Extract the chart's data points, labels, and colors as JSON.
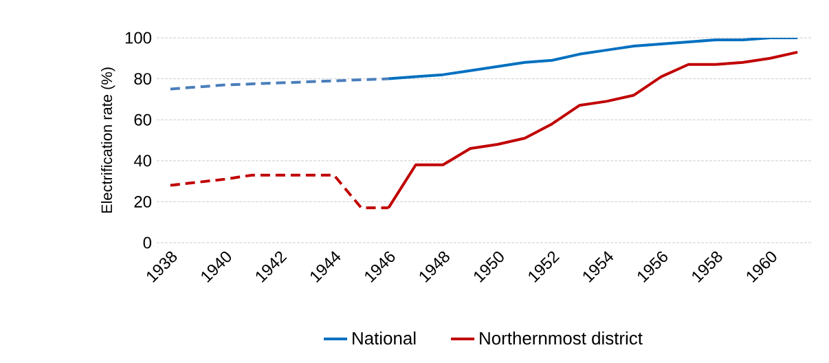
{
  "chart_data": {
    "type": "line",
    "ylabel": "Electrification rate (%)",
    "xlim": [
      1937.5,
      1961.5
    ],
    "ylim": [
      0,
      100
    ],
    "xticks": [
      1938,
      1940,
      1942,
      1944,
      1946,
      1948,
      1950,
      1952,
      1954,
      1956,
      1958,
      1960
    ],
    "yticks": [
      0,
      20,
      40,
      60,
      80,
      100
    ],
    "grid": "y",
    "legend": "bottom",
    "marker": "none",
    "series": [
      {
        "color": "#4a7ebb",
        "line_style": "dashed",
        "x": [
          1938,
          1939,
          1940,
          1941,
          1942,
          1943,
          1944,
          1945,
          1946
        ],
        "values": [
          75,
          76,
          77,
          77.5,
          78,
          78.5,
          79,
          79.5,
          80
        ]
      },
      {
        "name": "National",
        "color": "#0070c0",
        "line_style": "solid",
        "x": [
          1946,
          1947,
          1948,
          1949,
          1950,
          1951,
          1952,
          1953,
          1954,
          1955,
          1956,
          1957,
          1958,
          1959,
          1960,
          1961
        ],
        "values": [
          80,
          81,
          82,
          84,
          86,
          88,
          89,
          92,
          94,
          96,
          97,
          98,
          99,
          99,
          100,
          100
        ]
      },
      {
        "color": "#c00000",
        "line_style": "dashed",
        "x": [
          1938,
          1939,
          1940,
          1941,
          1942,
          1943,
          1944,
          1945,
          1946
        ],
        "values": [
          28,
          29.5,
          31,
          33,
          33,
          33,
          33,
          17,
          17
        ]
      },
      {
        "name": "Northernmost district",
        "color": "#c00000",
        "line_style": "solid",
        "x": [
          1946,
          1947,
          1948,
          1949,
          1950,
          1951,
          1952,
          1953,
          1954,
          1955,
          1956,
          1957,
          1958,
          1959,
          1960,
          1961
        ],
        "values": [
          17,
          38,
          38,
          46,
          48,
          51,
          58,
          67,
          69,
          72,
          81,
          87,
          87,
          88,
          90,
          93
        ]
      }
    ]
  }
}
